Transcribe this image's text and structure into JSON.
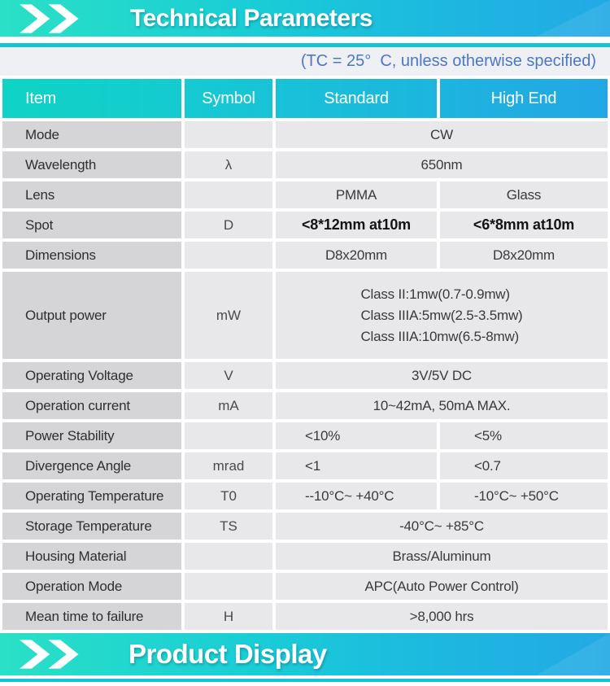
{
  "colors": {
    "banner_teal_left": "#2ae0c6",
    "banner_blue_right": "#22a9e5",
    "divider_teal": "#14c3d8",
    "subtitle_text_blue": "#4b77cb",
    "item_cell_bg": "#d5d5d7",
    "value_cell_bg": "#e8e8ea"
  },
  "icons": {
    "banner_chevrons": "double-chevron-right-icon"
  },
  "sections": {
    "technical": {
      "title": "Technical Parameters",
      "condition_note": "(TC = 25°  C, unless otherwise specified)"
    },
    "product_display": {
      "title": "Product Display"
    }
  },
  "table": {
    "columns": [
      "Item",
      "Symbol",
      "Standard",
      "High End"
    ],
    "rows": [
      {
        "item": "Mode",
        "symbol": "",
        "cells": [
          {
            "text": "CW",
            "span": 2
          }
        ]
      },
      {
        "item": "Wavelength",
        "symbol": "λ",
        "cells": [
          {
            "text": "650nm",
            "span": 2
          }
        ]
      },
      {
        "item": "Lens",
        "symbol": "",
        "cells": [
          {
            "text": "PMMA"
          },
          {
            "text": "Glass"
          }
        ]
      },
      {
        "item": "Spot",
        "symbol": "D",
        "cells": [
          {
            "text": "<8*12mm at10m",
            "bold": true
          },
          {
            "text": "<6*8mm at10m",
            "bold": true
          }
        ]
      },
      {
        "item": "Dimensions",
        "symbol": "",
        "cells": [
          {
            "text": "D8x20mm"
          },
          {
            "text": "D8x20mm"
          }
        ]
      },
      {
        "item": "Output power",
        "symbol": "mW",
        "tall": true,
        "cells": [
          {
            "lines": [
              "Class II:1mw(0.7-0.9mw)",
              "Class IIIA:5mw(2.5-3.5mw)",
              "Class IIIA:10mw(6.5-8mw)"
            ],
            "span": 2
          }
        ]
      },
      {
        "item": "Operating Voltage",
        "symbol": "V",
        "cells": [
          {
            "text": "3V/5V DC",
            "span": 2
          }
        ]
      },
      {
        "item": "Operation current",
        "symbol": "mA",
        "cells": [
          {
            "text": "10~42mA, 50mA MAX.",
            "span": 2
          }
        ]
      },
      {
        "item": "Power Stability",
        "symbol": "",
        "cells": [
          {
            "text": "<10%",
            "align": "left"
          },
          {
            "text": "<5%",
            "align": "left"
          }
        ]
      },
      {
        "item": "Divergence Angle",
        "symbol": "mrad",
        "cells": [
          {
            "text": "<1",
            "align": "left"
          },
          {
            "text": "<0.7",
            "align": "left"
          }
        ]
      },
      {
        "item": "Operating Temperature",
        "symbol": "T0",
        "cells": [
          {
            "text": "--10°C~ +40°C",
            "align": "left"
          },
          {
            "text": "-10°C~ +50°C",
            "align": "left"
          }
        ]
      },
      {
        "item": "Storage Temperature",
        "symbol": "TS",
        "cells": [
          {
            "text": "-40°C~ +85°C",
            "span": 2
          }
        ]
      },
      {
        "item": "Housing Material",
        "symbol": "",
        "cells": [
          {
            "text": "Brass/Aluminum",
            "span": 2
          }
        ]
      },
      {
        "item": "Operation Mode",
        "symbol": "",
        "cells": [
          {
            "text": "APC(Auto Power Control)",
            "span": 2
          }
        ]
      },
      {
        "item": "Mean time to failure",
        "symbol": "H",
        "cells": [
          {
            "text": ">8,000 hrs",
            "span": 2
          }
        ]
      }
    ]
  }
}
